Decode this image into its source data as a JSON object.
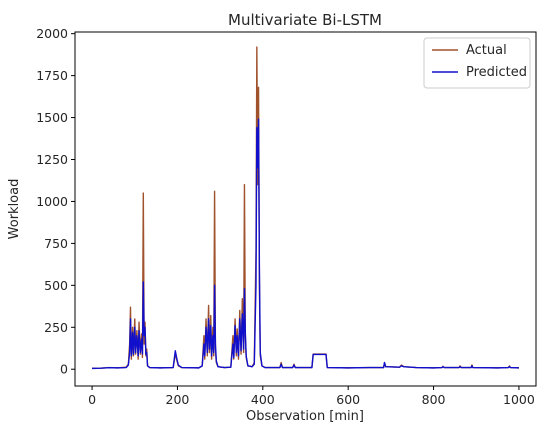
{
  "chart_data": {
    "type": "line",
    "title": "Multivariate Bi-LSTM",
    "xlabel": "Observation [min]",
    "ylabel": "Workload",
    "xlim": [
      -40,
      1040
    ],
    "ylim": [
      -100,
      2010
    ],
    "xticks": [
      "0",
      "200",
      "400",
      "600",
      "800",
      "1000"
    ],
    "yticks": [
      "0",
      "250",
      "500",
      "750",
      "1000",
      "1250",
      "1500",
      "1750",
      "2000"
    ],
    "grid": false,
    "legend_position": "top-right",
    "series": [
      {
        "name": "Actual",
        "color": "#a0522d",
        "points": [
          [
            0,
            5
          ],
          [
            20,
            6
          ],
          [
            40,
            10
          ],
          [
            60,
            8
          ],
          [
            80,
            12
          ],
          [
            85,
            30
          ],
          [
            88,
            150
          ],
          [
            90,
            370
          ],
          [
            92,
            60
          ],
          [
            95,
            250
          ],
          [
            97,
            80
          ],
          [
            100,
            300
          ],
          [
            102,
            90
          ],
          [
            105,
            230
          ],
          [
            108,
            60
          ],
          [
            110,
            280
          ],
          [
            113,
            90
          ],
          [
            116,
            210
          ],
          [
            118,
            70
          ],
          [
            120,
            1050
          ],
          [
            122,
            150
          ],
          [
            124,
            280
          ],
          [
            126,
            80
          ],
          [
            128,
            120
          ],
          [
            130,
            20
          ],
          [
            135,
            10
          ],
          [
            160,
            8
          ],
          [
            190,
            10
          ],
          [
            195,
            90
          ],
          [
            198,
            60
          ],
          [
            202,
            20
          ],
          [
            210,
            10
          ],
          [
            250,
            8
          ],
          [
            258,
            20
          ],
          [
            262,
            200
          ],
          [
            264,
            60
          ],
          [
            267,
            300
          ],
          [
            270,
            80
          ],
          [
            273,
            380
          ],
          [
            275,
            100
          ],
          [
            278,
            320
          ],
          [
            280,
            60
          ],
          [
            283,
            250
          ],
          [
            285,
            80
          ],
          [
            287,
            1060
          ],
          [
            289,
            120
          ],
          [
            291,
            40
          ],
          [
            295,
            15
          ],
          [
            310,
            10
          ],
          [
            325,
            12
          ],
          [
            330,
            200
          ],
          [
            332,
            60
          ],
          [
            335,
            300
          ],
          [
            338,
            80
          ],
          [
            340,
            240
          ],
          [
            343,
            60
          ],
          [
            346,
            350
          ],
          [
            349,
            90
          ],
          [
            352,
            420
          ],
          [
            355,
            100
          ],
          [
            357,
            1100
          ],
          [
            359,
            200
          ],
          [
            361,
            70
          ],
          [
            365,
            20
          ],
          [
            375,
            15
          ],
          [
            380,
            40
          ],
          [
            384,
            700
          ],
          [
            386,
            1920
          ],
          [
            388,
            1100
          ],
          [
            390,
            1680
          ],
          [
            392,
            500
          ],
          [
            394,
            80
          ],
          [
            398,
            20
          ],
          [
            405,
            10
          ],
          [
            440,
            10
          ],
          [
            443,
            40
          ],
          [
            446,
            10
          ],
          [
            470,
            10
          ],
          [
            473,
            30
          ],
          [
            476,
            10
          ],
          [
            515,
            10
          ],
          [
            518,
            90
          ],
          [
            548,
            90
          ],
          [
            551,
            10
          ],
          [
            600,
            8
          ],
          [
            650,
            10
          ],
          [
            683,
            10
          ],
          [
            685,
            35
          ],
          [
            688,
            15
          ],
          [
            720,
            12
          ],
          [
            725,
            25
          ],
          [
            730,
            15
          ],
          [
            760,
            10
          ],
          [
            800,
            8
          ],
          [
            820,
            10
          ],
          [
            822,
            18
          ],
          [
            825,
            10
          ],
          [
            860,
            10
          ],
          [
            862,
            20
          ],
          [
            865,
            10
          ],
          [
            888,
            10
          ],
          [
            890,
            25
          ],
          [
            892,
            10
          ],
          [
            950,
            8
          ],
          [
            975,
            10
          ],
          [
            978,
            20
          ],
          [
            980,
            10
          ],
          [
            1000,
            8
          ]
        ]
      },
      {
        "name": "Predicted",
        "color": "#1010cc",
        "points": [
          [
            0,
            5
          ],
          [
            20,
            6
          ],
          [
            40,
            9
          ],
          [
            60,
            8
          ],
          [
            80,
            10
          ],
          [
            85,
            25
          ],
          [
            88,
            100
          ],
          [
            90,
            300
          ],
          [
            92,
            80
          ],
          [
            95,
            220
          ],
          [
            97,
            90
          ],
          [
            100,
            250
          ],
          [
            102,
            100
          ],
          [
            105,
            200
          ],
          [
            108,
            80
          ],
          [
            110,
            230
          ],
          [
            113,
            100
          ],
          [
            116,
            180
          ],
          [
            118,
            90
          ],
          [
            120,
            520
          ],
          [
            122,
            200
          ],
          [
            124,
            250
          ],
          [
            126,
            90
          ],
          [
            128,
            100
          ],
          [
            130,
            20
          ],
          [
            135,
            10
          ],
          [
            160,
            8
          ],
          [
            190,
            10
          ],
          [
            195,
            110
          ],
          [
            198,
            70
          ],
          [
            202,
            25
          ],
          [
            210,
            10
          ],
          [
            250,
            8
          ],
          [
            258,
            20
          ],
          [
            262,
            150
          ],
          [
            264,
            80
          ],
          [
            267,
            250
          ],
          [
            270,
            100
          ],
          [
            273,
            300
          ],
          [
            275,
            120
          ],
          [
            278,
            260
          ],
          [
            280,
            80
          ],
          [
            283,
            200
          ],
          [
            285,
            100
          ],
          [
            287,
            500
          ],
          [
            289,
            150
          ],
          [
            291,
            50
          ],
          [
            295,
            15
          ],
          [
            310,
            10
          ],
          [
            325,
            12
          ],
          [
            330,
            150
          ],
          [
            332,
            70
          ],
          [
            335,
            260
          ],
          [
            338,
            100
          ],
          [
            340,
            200
          ],
          [
            343,
            80
          ],
          [
            346,
            300
          ],
          [
            349,
            110
          ],
          [
            352,
            330
          ],
          [
            355,
            120
          ],
          [
            357,
            480
          ],
          [
            359,
            220
          ],
          [
            361,
            80
          ],
          [
            365,
            20
          ],
          [
            375,
            15
          ],
          [
            380,
            30
          ],
          [
            384,
            500
          ],
          [
            386,
            1440
          ],
          [
            388,
            1200
          ],
          [
            390,
            1490
          ],
          [
            392,
            600
          ],
          [
            394,
            100
          ],
          [
            398,
            20
          ],
          [
            405,
            10
          ],
          [
            440,
            10
          ],
          [
            443,
            30
          ],
          [
            446,
            10
          ],
          [
            470,
            10
          ],
          [
            473,
            25
          ],
          [
            476,
            10
          ],
          [
            515,
            10
          ],
          [
            518,
            88
          ],
          [
            548,
            88
          ],
          [
            551,
            10
          ],
          [
            600,
            8
          ],
          [
            650,
            10
          ],
          [
            683,
            10
          ],
          [
            685,
            40
          ],
          [
            688,
            15
          ],
          [
            720,
            12
          ],
          [
            725,
            20
          ],
          [
            730,
            15
          ],
          [
            760,
            10
          ],
          [
            800,
            8
          ],
          [
            820,
            10
          ],
          [
            822,
            15
          ],
          [
            825,
            10
          ],
          [
            860,
            10
          ],
          [
            862,
            15
          ],
          [
            865,
            10
          ],
          [
            888,
            10
          ],
          [
            890,
            20
          ],
          [
            892,
            10
          ],
          [
            950,
            8
          ],
          [
            975,
            10
          ],
          [
            978,
            15
          ],
          [
            980,
            10
          ],
          [
            1000,
            8
          ]
        ]
      }
    ]
  }
}
